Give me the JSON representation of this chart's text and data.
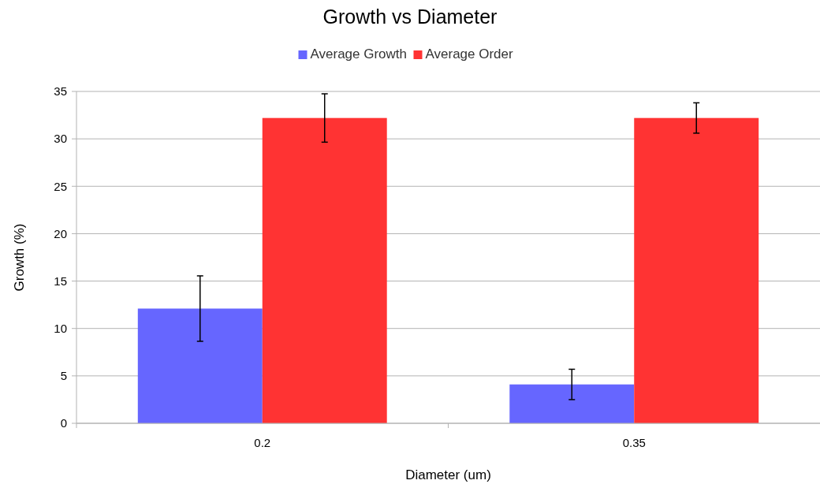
{
  "chart_data": {
    "type": "bar",
    "title": "Growth vs Diameter",
    "xlabel": "Diameter (um)",
    "ylabel": "Growth (%)",
    "categories": [
      "0.2",
      "0.35"
    ],
    "series": [
      {
        "name": "Average Growth",
        "color": "#6666ff",
        "values": [
          12.1,
          4.1
        ],
        "errors": [
          3.45,
          1.6
        ]
      },
      {
        "name": "Average Order",
        "color": "#ff3333",
        "values": [
          32.2,
          32.2
        ],
        "errors": [
          2.55,
          1.6
        ]
      }
    ],
    "ylim": [
      0,
      35
    ],
    "yticks": [
      0,
      5,
      10,
      15,
      20,
      25,
      30,
      35
    ],
    "grid": "y",
    "legend": "top"
  }
}
